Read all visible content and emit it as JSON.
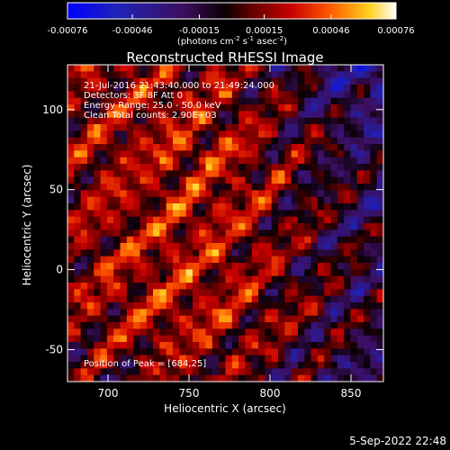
{
  "chart_data": {
    "type": "heatmap",
    "title": "Reconstructed RHESSI Image",
    "xlabel": "Heliocentric X (arcsec)",
    "ylabel": "Heliocentric Y (arcsec)",
    "xlim": [
      675,
      870
    ],
    "ylim": [
      -70,
      128
    ],
    "x_ticks": [
      700,
      750,
      800,
      850
    ],
    "x_tick_labels": [
      "700",
      "750",
      "800",
      "850"
    ],
    "y_ticks": [
      -50,
      0,
      50,
      100
    ],
    "y_tick_labels": [
      "-50",
      "0",
      "50",
      "100"
    ],
    "colorbar": {
      "range": [
        -0.00076,
        0.00076
      ],
      "tick_values": [
        -0.00076,
        -0.00046,
        -0.00015,
        0.00015,
        0.00046,
        0.00076
      ],
      "tick_labels": [
        "-0.00076",
        "-0.00046",
        "-0.00015",
        "0.00015",
        "0.00046",
        "0.00076"
      ],
      "unit_label_parts": [
        "(photons cm",
        "-2",
        " s",
        "-1",
        " asec",
        "-2",
        ")"
      ]
    },
    "annotations": [
      "21-Jul-2016 21:43:40.000 to 21:49:24.000",
      "Detectors: 3F 8F  Att 0",
      "Energy Range: 25.0 - 50.0 keV",
      "Clean    Total counts: 2.90E+03"
    ],
    "peak_label": "Position of Peak = [684,25]",
    "peak_position": [
      684,
      25
    ],
    "grid_n": 48,
    "colors": {
      "background": "#000000",
      "axis": "#ffffff"
    }
  },
  "footer_timestamp": "5-Sep-2022 22:48"
}
